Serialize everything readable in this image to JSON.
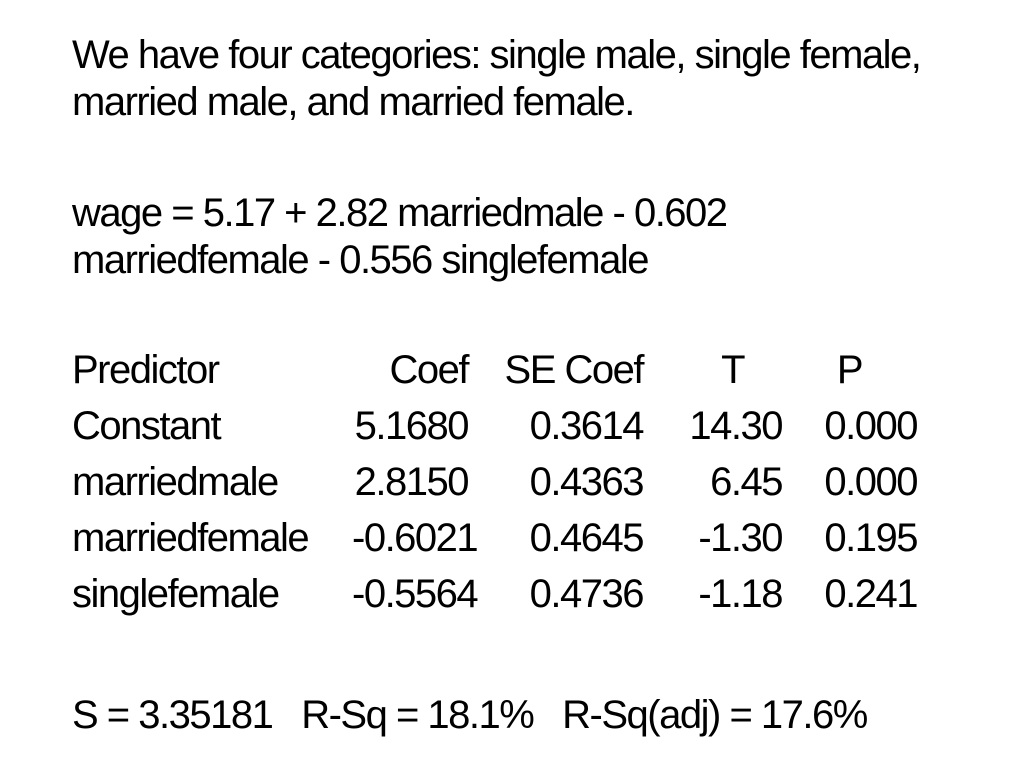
{
  "slide": {
    "background_color": "#ffffff",
    "text_color": "#000000",
    "intro": {
      "lines": [
        "We have four categories: single male, single female,",
        "married male, and married female."
      ]
    },
    "equation": {
      "lines": [
        "wage = 5.17 + 2.82 marriedmale - 0.602",
        "marriedfemale - 0.556 singlefemale"
      ]
    },
    "regression_table": {
      "headers": {
        "predictor": "Predictor",
        "coef": "Coef",
        "se_coef": "SE Coef",
        "t": "T",
        "p": "P"
      },
      "rows": [
        {
          "predictor": "Constant",
          "coef": "5.1680",
          "se_coef": "0.3614",
          "t": "14.30",
          "p": "0.000"
        },
        {
          "predictor": "marriedmale",
          "coef": "2.8150",
          "se_coef": "0.4363",
          "t": "6.45",
          "p": "0.000"
        },
        {
          "predictor": "marriedfemale",
          "coef": "-0.6021",
          "se_coef": "0.4645",
          "t": "-1.30",
          "p": "0.195"
        },
        {
          "predictor": "singlefemale",
          "coef": "-0.5564",
          "se_coef": "0.4736",
          "t": "-1.18",
          "p": "0.241"
        }
      ]
    },
    "model_summary": "S = 3.35181   R-Sq = 18.1%   R-Sq(adj) = 17.6%"
  }
}
